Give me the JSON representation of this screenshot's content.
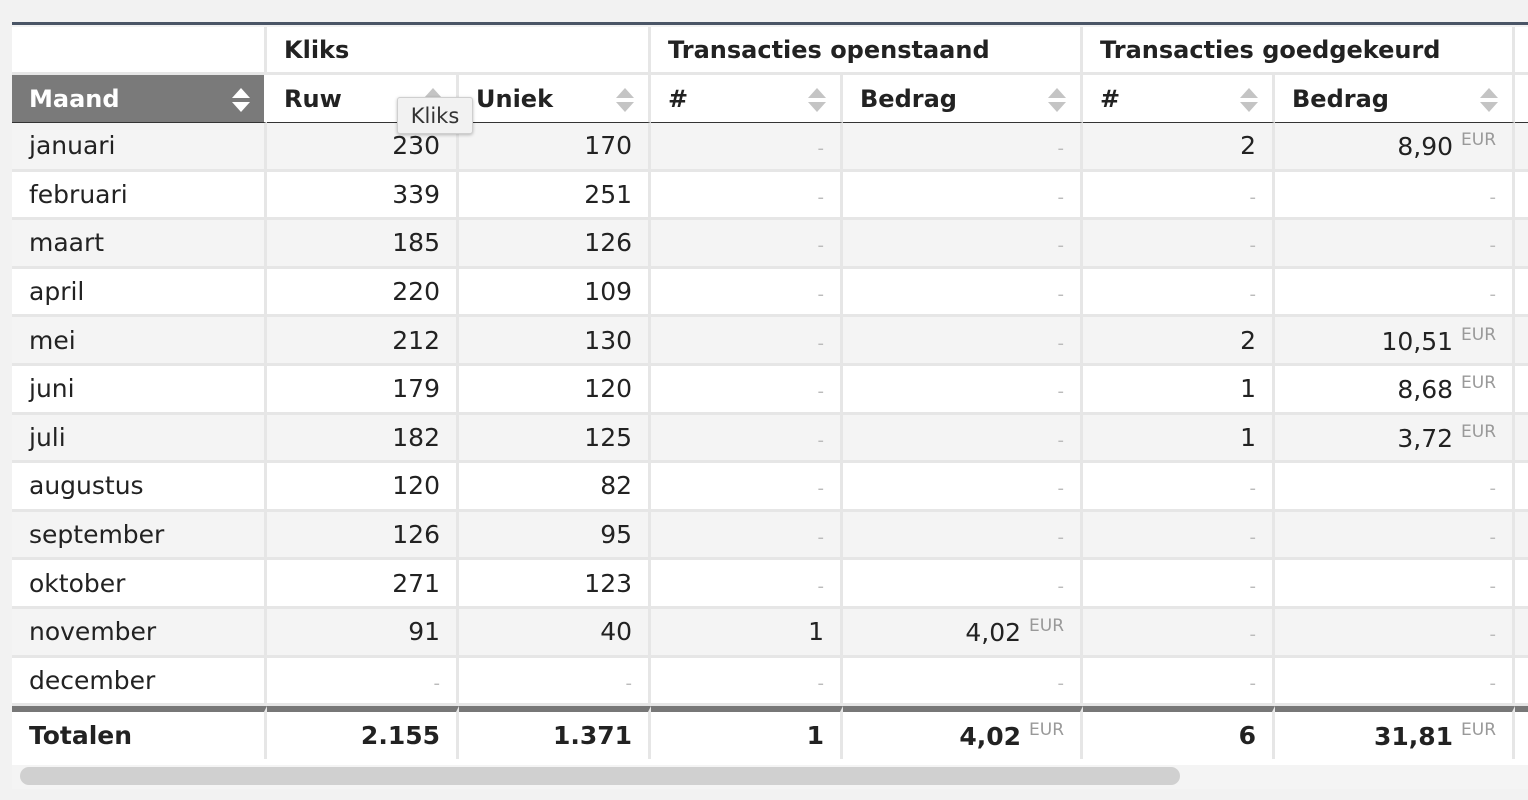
{
  "table": {
    "groups": [
      "",
      "Kliks",
      "Transacties openstaand",
      "Transacties goedgekeurd"
    ],
    "headers": [
      "Maand",
      "Ruw",
      "Uniek",
      "#",
      "Bedrag",
      "#",
      "Bedrag"
    ],
    "currency": "EUR",
    "dash": "-",
    "rows": [
      {
        "maand": "januari",
        "ruw": "230",
        "uniek": "170",
        "open_n": "-",
        "open_bedrag": "-",
        "goed_n": "2",
        "goed_bedrag": "8,90"
      },
      {
        "maand": "februari",
        "ruw": "339",
        "uniek": "251",
        "open_n": "-",
        "open_bedrag": "-",
        "goed_n": "-",
        "goed_bedrag": "-"
      },
      {
        "maand": "maart",
        "ruw": "185",
        "uniek": "126",
        "open_n": "-",
        "open_bedrag": "-",
        "goed_n": "-",
        "goed_bedrag": "-"
      },
      {
        "maand": "april",
        "ruw": "220",
        "uniek": "109",
        "open_n": "-",
        "open_bedrag": "-",
        "goed_n": "-",
        "goed_bedrag": "-"
      },
      {
        "maand": "mei",
        "ruw": "212",
        "uniek": "130",
        "open_n": "-",
        "open_bedrag": "-",
        "goed_n": "2",
        "goed_bedrag": "10,51"
      },
      {
        "maand": "juni",
        "ruw": "179",
        "uniek": "120",
        "open_n": "-",
        "open_bedrag": "-",
        "goed_n": "1",
        "goed_bedrag": "8,68"
      },
      {
        "maand": "juli",
        "ruw": "182",
        "uniek": "125",
        "open_n": "-",
        "open_bedrag": "-",
        "goed_n": "1",
        "goed_bedrag": "3,72"
      },
      {
        "maand": "augustus",
        "ruw": "120",
        "uniek": "82",
        "open_n": "-",
        "open_bedrag": "-",
        "goed_n": "-",
        "goed_bedrag": "-"
      },
      {
        "maand": "september",
        "ruw": "126",
        "uniek": "95",
        "open_n": "-",
        "open_bedrag": "-",
        "goed_n": "-",
        "goed_bedrag": "-"
      },
      {
        "maand": "oktober",
        "ruw": "271",
        "uniek": "123",
        "open_n": "-",
        "open_bedrag": "-",
        "goed_n": "-",
        "goed_bedrag": "-"
      },
      {
        "maand": "november",
        "ruw": "91",
        "uniek": "40",
        "open_n": "1",
        "open_bedrag": "4,02",
        "goed_n": "-",
        "goed_bedrag": "-"
      },
      {
        "maand": "december",
        "ruw": "-",
        "uniek": "-",
        "open_n": "-",
        "open_bedrag": "-",
        "goed_n": "-",
        "goed_bedrag": "-"
      }
    ],
    "totals": {
      "label": "Totalen",
      "ruw": "2.155",
      "uniek": "1.371",
      "open_n": "1",
      "open_bedrag": "4,02",
      "goed_n": "6",
      "goed_bedrag": "31,81"
    }
  },
  "tooltip": "Kliks",
  "sort_icon": "sort-updown-icon"
}
